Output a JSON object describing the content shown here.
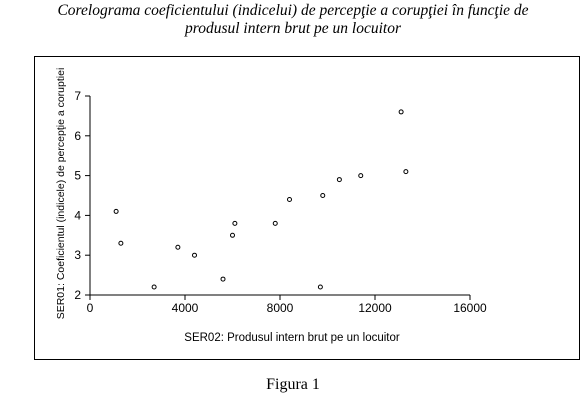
{
  "figure": {
    "title_line1": "Corelograma  coeficientului (indicelui) de percepţie a corupţiei în funcţie de",
    "title_line2": "produsul intern brut pe un locuitor",
    "caption": "Figura 1"
  },
  "chart_data": {
    "type": "scatter",
    "xlabel": "SER02: Produsul intern brut pe un locuitor",
    "ylabel": "SER01: Coeficientul (indicele) de percepţie a coruptiei",
    "xlim": [
      0,
      16000
    ],
    "ylim": [
      2,
      7
    ],
    "xticks": [
      "0",
      "4000",
      "8000",
      "12000",
      "16000"
    ],
    "yticks": [
      "2",
      "3",
      "4",
      "5",
      "6",
      "7"
    ],
    "grid": false,
    "x": [
      1100,
      1300,
      2700,
      3700,
      4400,
      5600,
      6000,
      6100,
      7800,
      8400,
      9700,
      9800,
      10500,
      11400,
      13100,
      13300
    ],
    "y": [
      4.1,
      3.3,
      2.2,
      3.2,
      3.0,
      2.4,
      3.5,
      3.8,
      3.8,
      4.4,
      2.2,
      4.5,
      4.9,
      5.0,
      6.6,
      5.1
    ]
  }
}
